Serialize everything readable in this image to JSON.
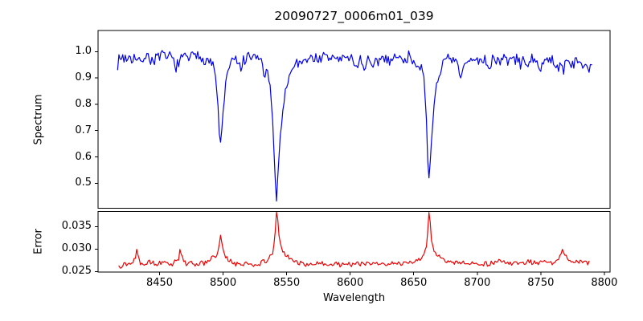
{
  "title": "20090727_0006m01_039",
  "chart_data": [
    {
      "type": "line",
      "id": "spectrum",
      "ylabel": "Spectrum",
      "color": "#0000ee",
      "xlim": [
        8401.6,
        8804.5
      ],
      "ylim": [
        0.405,
        1.08
      ],
      "yticks": [
        0.5,
        0.6,
        0.7,
        0.8,
        0.9,
        1.0
      ],
      "ytick_labels": [
        "0.5",
        "0.6",
        "0.7",
        "0.8",
        "0.9",
        "1.0"
      ],
      "x_start": 8417,
      "x_end": 8790,
      "x_step": 1.0,
      "noise": {
        "amplitude": 0.021,
        "seed": 7,
        "min_scale": 0.3,
        "zero_at": 0.5,
        "full_at": 0.95
      },
      "absorption_line_cores": [
        [
          8498,
          0.645
        ],
        [
          8542,
          0.44
        ],
        [
          8662,
          0.52
        ]
      ],
      "anchors": [
        [
          8417,
          0.96
        ],
        [
          8420,
          0.98
        ],
        [
          8426,
          0.975
        ],
        [
          8430,
          0.98
        ],
        [
          8433,
          0.952
        ],
        [
          8436,
          0.978
        ],
        [
          8441,
          0.98
        ],
        [
          8445,
          0.968
        ],
        [
          8450,
          0.978
        ],
        [
          8455,
          0.98
        ],
        [
          8460,
          0.974
        ],
        [
          8464,
          0.945
        ],
        [
          8466,
          0.962
        ],
        [
          8470,
          0.98
        ],
        [
          8476,
          0.978
        ],
        [
          8482,
          0.98
        ],
        [
          8487,
          0.975
        ],
        [
          8490,
          0.966
        ],
        [
          8492,
          0.946
        ],
        [
          8494,
          0.9
        ],
        [
          8495.5,
          0.83
        ],
        [
          8497,
          0.7
        ],
        [
          8498,
          0.645
        ],
        [
          8499,
          0.7
        ],
        [
          8500.5,
          0.8
        ],
        [
          8502,
          0.875
        ],
        [
          8504,
          0.93
        ],
        [
          8506,
          0.955
        ],
        [
          8510,
          0.968
        ],
        [
          8514,
          0.935
        ],
        [
          8516,
          0.962
        ],
        [
          8520,
          0.972
        ],
        [
          8525,
          0.978
        ],
        [
          8529,
          0.972
        ],
        [
          8531,
          0.948
        ],
        [
          8533,
          0.905
        ],
        [
          8535,
          0.915
        ],
        [
          8536.5,
          0.885
        ],
        [
          8538,
          0.8
        ],
        [
          8539.5,
          0.68
        ],
        [
          8541,
          0.52
        ],
        [
          8542,
          0.44
        ],
        [
          8543,
          0.52
        ],
        [
          8544.5,
          0.645
        ],
        [
          8546,
          0.73
        ],
        [
          8548,
          0.82
        ],
        [
          8550,
          0.87
        ],
        [
          8552,
          0.91
        ],
        [
          8555,
          0.94
        ],
        [
          8558,
          0.956
        ],
        [
          8562,
          0.966
        ],
        [
          8566,
          0.976
        ],
        [
          8571,
          0.972
        ],
        [
          8576,
          0.978
        ],
        [
          8581,
          0.973
        ],
        [
          8586,
          0.978
        ],
        [
          8591,
          0.972
        ],
        [
          8596,
          0.977
        ],
        [
          8601,
          0.972
        ],
        [
          8605,
          0.947
        ],
        [
          8608,
          0.97
        ],
        [
          8611,
          0.937
        ],
        [
          8614,
          0.966
        ],
        [
          8618,
          0.932
        ],
        [
          8621,
          0.962
        ],
        [
          8626,
          0.977
        ],
        [
          8631,
          0.972
        ],
        [
          8636,
          0.977
        ],
        [
          8641,
          0.973
        ],
        [
          8646,
          0.977
        ],
        [
          8650,
          0.97
        ],
        [
          8653,
          0.956
        ],
        [
          8655,
          0.946
        ],
        [
          8657,
          0.916
        ],
        [
          8658.5,
          0.86
        ],
        [
          8660,
          0.73
        ],
        [
          8661,
          0.58
        ],
        [
          8662,
          0.52
        ],
        [
          8663,
          0.58
        ],
        [
          8664.5,
          0.7
        ],
        [
          8666,
          0.8
        ],
        [
          8668,
          0.875
        ],
        [
          8670,
          0.92
        ],
        [
          8673,
          0.95
        ],
        [
          8676,
          0.962
        ],
        [
          8680,
          0.967
        ],
        [
          8684,
          0.952
        ],
        [
          8687,
          0.897
        ],
        [
          8689,
          0.932
        ],
        [
          8692,
          0.962
        ],
        [
          8696,
          0.967
        ],
        [
          8700,
          0.972
        ],
        [
          8705,
          0.967
        ],
        [
          8710,
          0.947
        ],
        [
          8712,
          0.967
        ],
        [
          8716,
          0.972
        ],
        [
          8721,
          0.967
        ],
        [
          8726,
          0.972
        ],
        [
          8731,
          0.966
        ],
        [
          8736,
          0.956
        ],
        [
          8741,
          0.966
        ],
        [
          8745,
          0.956
        ],
        [
          8748,
          0.937
        ],
        [
          8751,
          0.962
        ],
        [
          8755,
          0.967
        ],
        [
          8760,
          0.957
        ],
        [
          8764,
          0.947
        ],
        [
          8767,
          0.937
        ],
        [
          8770,
          0.957
        ],
        [
          8775,
          0.962
        ],
        [
          8780,
          0.952
        ],
        [
          8784,
          0.962
        ],
        [
          8787,
          0.947
        ],
        [
          8790,
          0.952
        ]
      ]
    },
    {
      "type": "line",
      "id": "error",
      "ylabel": "Error",
      "xlabel": "Wavelength",
      "color": "#ee0000",
      "xlim": [
        8401.6,
        8804.5
      ],
      "ylim": [
        0.02487,
        0.0384
      ],
      "yticks": [
        0.025,
        0.03,
        0.035
      ],
      "ytick_labels": [
        "0.025",
        "0.030",
        "0.035"
      ],
      "xticks": [
        8450,
        8500,
        8550,
        8600,
        8650,
        8700,
        8750,
        8800
      ],
      "xtick_labels": [
        "8450",
        "8500",
        "8550",
        "8600",
        "8650",
        "8700",
        "8750",
        "8800"
      ],
      "x_start": 8418,
      "x_end": 8788,
      "x_step": 1.0,
      "noise": {
        "amplitude": 0.00048,
        "seed": 13,
        "min_scale": 0.25,
        "zero_at": 0.032,
        "full_at": 0.0277
      },
      "error_peaks": [
        [
          8432,
          0.0303
        ],
        [
          8466,
          0.03
        ],
        [
          8498,
          0.033
        ],
        [
          8542,
          0.0383
        ],
        [
          8662,
          0.0383
        ],
        [
          8767,
          0.0301
        ]
      ],
      "anchors": [
        [
          8418,
          0.0263
        ],
        [
          8421,
          0.0266
        ],
        [
          8425,
          0.0267
        ],
        [
          8428,
          0.0268
        ],
        [
          8431,
          0.0283
        ],
        [
          8432,
          0.0303
        ],
        [
          8433,
          0.0286
        ],
        [
          8435,
          0.0268
        ],
        [
          8440,
          0.027
        ],
        [
          8442,
          0.0276
        ],
        [
          8444,
          0.0268
        ],
        [
          8449,
          0.0267
        ],
        [
          8454,
          0.0268
        ],
        [
          8459,
          0.0267
        ],
        [
          8463,
          0.0272
        ],
        [
          8465,
          0.0279
        ],
        [
          8466,
          0.03
        ],
        [
          8467,
          0.0291
        ],
        [
          8469,
          0.0271
        ],
        [
          8473,
          0.0267
        ],
        [
          8478,
          0.0268
        ],
        [
          8483,
          0.0267
        ],
        [
          8487,
          0.0271
        ],
        [
          8490,
          0.0274
        ],
        [
          8492,
          0.0286
        ],
        [
          8494,
          0.028
        ],
        [
          8496,
          0.0292
        ],
        [
          8498,
          0.033
        ],
        [
          8500,
          0.03
        ],
        [
          8502,
          0.0282
        ],
        [
          8504,
          0.0274
        ],
        [
          8507,
          0.027
        ],
        [
          8511,
          0.0267
        ],
        [
          8516,
          0.0266
        ],
        [
          8521,
          0.0267
        ],
        [
          8526,
          0.0266
        ],
        [
          8531,
          0.0269
        ],
        [
          8534,
          0.0275
        ],
        [
          8537,
          0.0282
        ],
        [
          8539,
          0.0292
        ],
        [
          8540.5,
          0.0315
        ],
        [
          8542,
          0.0383
        ],
        [
          8543,
          0.0367
        ],
        [
          8544,
          0.033
        ],
        [
          8545.5,
          0.0305
        ],
        [
          8547,
          0.0295
        ],
        [
          8549,
          0.0288
        ],
        [
          8551,
          0.0283
        ],
        [
          8554,
          0.0277
        ],
        [
          8557,
          0.0272
        ],
        [
          8560,
          0.0269
        ],
        [
          8565,
          0.0267
        ],
        [
          8571,
          0.0266
        ],
        [
          8577,
          0.0267
        ],
        [
          8583,
          0.0266
        ],
        [
          8589,
          0.0267
        ],
        [
          8595,
          0.0266
        ],
        [
          8601,
          0.0267
        ],
        [
          8607,
          0.0267
        ],
        [
          8613,
          0.0266
        ],
        [
          8619,
          0.0268
        ],
        [
          8625,
          0.0267
        ],
        [
          8631,
          0.0268
        ],
        [
          8637,
          0.0267
        ],
        [
          8643,
          0.0268
        ],
        [
          8648,
          0.0271
        ],
        [
          8652,
          0.0275
        ],
        [
          8655,
          0.028
        ],
        [
          8658,
          0.0287
        ],
        [
          8660,
          0.0305
        ],
        [
          8661,
          0.034
        ],
        [
          8662,
          0.0383
        ],
        [
          8663,
          0.0358
        ],
        [
          8664,
          0.032
        ],
        [
          8666,
          0.0296
        ],
        [
          8668,
          0.0288
        ],
        [
          8670,
          0.0283
        ],
        [
          8673,
          0.0277
        ],
        [
          8676,
          0.0273
        ],
        [
          8680,
          0.027
        ],
        [
          8684,
          0.0268
        ],
        [
          8688,
          0.0272
        ],
        [
          8692,
          0.0268
        ],
        [
          8697,
          0.0267
        ],
        [
          8702,
          0.0268
        ],
        [
          8707,
          0.0267
        ],
        [
          8712,
          0.0268
        ],
        [
          8715,
          0.0271
        ],
        [
          8718,
          0.0274
        ],
        [
          8721,
          0.0269
        ],
        [
          8726,
          0.0268
        ],
        [
          8731,
          0.0269
        ],
        [
          8736,
          0.0268
        ],
        [
          8741,
          0.027
        ],
        [
          8746,
          0.0269
        ],
        [
          8751,
          0.027
        ],
        [
          8756,
          0.0269
        ],
        [
          8761,
          0.0271
        ],
        [
          8764,
          0.0274
        ],
        [
          8767,
          0.0301
        ],
        [
          8769,
          0.0286
        ],
        [
          8772,
          0.0278
        ],
        [
          8775,
          0.0272
        ],
        [
          8778,
          0.027
        ],
        [
          8781,
          0.0275
        ],
        [
          8784,
          0.0271
        ],
        [
          8787,
          0.0268
        ],
        [
          8788,
          0.027
        ]
      ]
    }
  ]
}
